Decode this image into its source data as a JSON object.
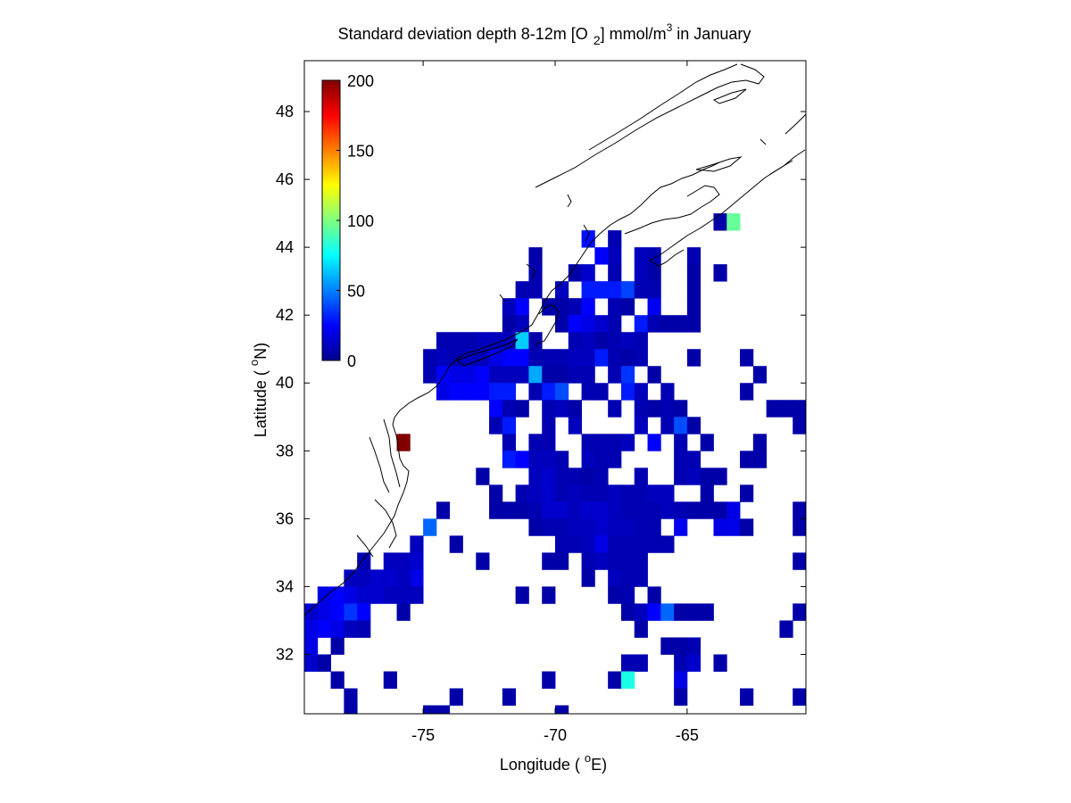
{
  "colors": {
    "background": "#ffffff",
    "coast": "#000000",
    "colormap": "jet"
  },
  "chart_data": {
    "type": "heatmap",
    "title_main": "Standard deviation depth 8-12m [O",
    "title_sub": "2",
    "title_mid": "] mmol/m",
    "title_sup": "3",
    "title_end": " in January",
    "xlabel_pre": "Longitude ( ",
    "xlabel_sup": "o",
    "xlabel_post": "E)",
    "ylabel_pre": "Latitude ( ",
    "ylabel_sup": "o",
    "ylabel_post": "N)",
    "xlim": [
      -79.5,
      -60.5
    ],
    "ylim": [
      30.25,
      49.5
    ],
    "xticks": [
      "-75",
      "-70",
      "-65"
    ],
    "yticks": [
      "32",
      "34",
      "36",
      "38",
      "40",
      "42",
      "44",
      "46",
      "48"
    ],
    "cell_size_deg": 0.5,
    "colorbar": {
      "range": [
        0,
        200
      ],
      "ticks": [
        "0",
        "50",
        "100",
        "150",
        "200"
      ],
      "placement": "top-left inside"
    },
    "grid": false,
    "cells": [
      [
        -63.75,
        44.75,
        8
      ],
      [
        -63.25,
        44.75,
        95
      ],
      [
        -68.75,
        44.25,
        28
      ],
      [
        -67.75,
        44.25,
        10
      ],
      [
        -70.75,
        43.75,
        8
      ],
      [
        -68.25,
        43.75,
        25
      ],
      [
        -67.75,
        43.75,
        12
      ],
      [
        -66.75,
        43.75,
        12
      ],
      [
        -66.25,
        43.75,
        10
      ],
      [
        -64.75,
        43.75,
        10
      ],
      [
        -70.75,
        43.25,
        10
      ],
      [
        -69.25,
        43.25,
        8
      ],
      [
        -68.75,
        43.25,
        15
      ],
      [
        -67.75,
        43.25,
        10
      ],
      [
        -66.75,
        43.25,
        12
      ],
      [
        -66.25,
        43.25,
        8
      ],
      [
        -64.75,
        43.25,
        8
      ],
      [
        -63.75,
        43.25,
        8
      ],
      [
        -71.25,
        42.75,
        10
      ],
      [
        -70.75,
        42.75,
        10
      ],
      [
        -69.75,
        42.75,
        12
      ],
      [
        -68.75,
        42.75,
        30
      ],
      [
        -68.25,
        42.75,
        30
      ],
      [
        -67.75,
        42.75,
        30
      ],
      [
        -67.25,
        42.75,
        38
      ],
      [
        -66.75,
        42.75,
        10
      ],
      [
        -66.25,
        42.75,
        10
      ],
      [
        -64.75,
        42.75,
        8
      ],
      [
        -71.75,
        42.25,
        12
      ],
      [
        -71.25,
        42.25,
        25
      ],
      [
        -70.25,
        42.25,
        8
      ],
      [
        -69.75,
        42.25,
        8
      ],
      [
        -69.25,
        42.25,
        10
      ],
      [
        -68.75,
        42.25,
        25
      ],
      [
        -67.75,
        42.25,
        10
      ],
      [
        -67.25,
        42.25,
        8
      ],
      [
        -66.25,
        42.25,
        22
      ],
      [
        -64.75,
        42.25,
        8
      ],
      [
        -71.75,
        41.75,
        8
      ],
      [
        -71.25,
        41.75,
        12
      ],
      [
        -69.75,
        41.75,
        8
      ],
      [
        -69.25,
        41.75,
        25
      ],
      [
        -68.75,
        41.75,
        20
      ],
      [
        -68.25,
        41.75,
        15
      ],
      [
        -67.75,
        41.75,
        10
      ],
      [
        -66.75,
        41.75,
        30
      ],
      [
        -66.25,
        41.75,
        10
      ],
      [
        -65.75,
        41.75,
        8
      ],
      [
        -65.25,
        41.75,
        8
      ],
      [
        -64.75,
        41.75,
        8
      ],
      [
        -74.25,
        41.25,
        10
      ],
      [
        -73.75,
        41.25,
        10
      ],
      [
        -73.25,
        41.25,
        10
      ],
      [
        -72.75,
        41.25,
        12
      ],
      [
        -72.25,
        41.25,
        12
      ],
      [
        -71.75,
        41.25,
        12
      ],
      [
        -71.25,
        41.25,
        65
      ],
      [
        -70.75,
        41.25,
        8
      ],
      [
        -69.25,
        41.25,
        10
      ],
      [
        -68.75,
        41.25,
        12
      ],
      [
        -68.25,
        41.25,
        8
      ],
      [
        -67.75,
        41.25,
        10
      ],
      [
        -67.25,
        41.25,
        12
      ],
      [
        -66.75,
        41.25,
        10
      ],
      [
        -74.75,
        40.75,
        10
      ],
      [
        -74.25,
        40.75,
        12
      ],
      [
        -73.75,
        40.75,
        10
      ],
      [
        -73.25,
        40.75,
        12
      ],
      [
        -72.75,
        40.75,
        12
      ],
      [
        -72.25,
        40.75,
        20
      ],
      [
        -71.75,
        40.75,
        25
      ],
      [
        -71.25,
        40.75,
        25
      ],
      [
        -70.75,
        40.75,
        10
      ],
      [
        -70.25,
        40.75,
        10
      ],
      [
        -69.75,
        40.75,
        10
      ],
      [
        -69.25,
        40.75,
        12
      ],
      [
        -68.75,
        40.75,
        12
      ],
      [
        -68.25,
        40.75,
        30
      ],
      [
        -67.75,
        40.75,
        10
      ],
      [
        -67.25,
        40.75,
        8
      ],
      [
        -66.75,
        40.75,
        10
      ],
      [
        -64.75,
        40.75,
        8
      ],
      [
        -62.75,
        40.75,
        8
      ],
      [
        -74.75,
        40.25,
        10
      ],
      [
        -74.25,
        40.25,
        25
      ],
      [
        -73.75,
        40.25,
        20
      ],
      [
        -73.25,
        40.25,
        20
      ],
      [
        -72.75,
        40.25,
        25
      ],
      [
        -72.25,
        40.25,
        12
      ],
      [
        -71.75,
        40.25,
        12
      ],
      [
        -71.25,
        40.25,
        12
      ],
      [
        -70.75,
        40.25,
        58
      ],
      [
        -70.25,
        40.25,
        8
      ],
      [
        -69.75,
        40.25,
        8
      ],
      [
        -69.25,
        40.25,
        10
      ],
      [
        -68.75,
        40.25,
        10
      ],
      [
        -67.75,
        40.25,
        10
      ],
      [
        -67.25,
        40.25,
        35
      ],
      [
        -66.25,
        40.25,
        8
      ],
      [
        -62.25,
        40.25,
        8
      ],
      [
        -74.25,
        39.75,
        20
      ],
      [
        -73.75,
        39.75,
        25
      ],
      [
        -73.25,
        39.75,
        25
      ],
      [
        -72.75,
        39.75,
        25
      ],
      [
        -72.25,
        39.75,
        30
      ],
      [
        -71.75,
        39.75,
        30
      ],
      [
        -70.75,
        39.75,
        10
      ],
      [
        -70.25,
        39.75,
        30
      ],
      [
        -69.75,
        39.75,
        40
      ],
      [
        -68.75,
        39.75,
        10
      ],
      [
        -68.25,
        39.75,
        10
      ],
      [
        -67.25,
        39.75,
        30
      ],
      [
        -66.75,
        39.75,
        12
      ],
      [
        -65.75,
        39.75,
        10
      ],
      [
        -62.75,
        39.75,
        8
      ],
      [
        -72.25,
        39.25,
        25
      ],
      [
        -71.75,
        39.25,
        10
      ],
      [
        -71.25,
        39.25,
        8
      ],
      [
        -70.25,
        39.25,
        10
      ],
      [
        -69.75,
        39.25,
        12
      ],
      [
        -69.25,
        39.25,
        8
      ],
      [
        -67.75,
        39.25,
        10
      ],
      [
        -66.75,
        39.25,
        10
      ],
      [
        -66.25,
        39.25,
        8
      ],
      [
        -65.75,
        39.25,
        10
      ],
      [
        -65.25,
        39.25,
        8
      ],
      [
        -61.75,
        39.25,
        8
      ],
      [
        -61.25,
        39.25,
        8
      ],
      [
        -60.75,
        39.25,
        8
      ],
      [
        -72.25,
        38.75,
        10
      ],
      [
        -71.75,
        38.75,
        30
      ],
      [
        -70.25,
        38.75,
        10
      ],
      [
        -69.25,
        38.75,
        12
      ],
      [
        -66.75,
        38.75,
        12
      ],
      [
        -65.75,
        38.75,
        10
      ],
      [
        -65.25,
        38.75,
        40
      ],
      [
        -64.75,
        38.75,
        8
      ],
      [
        -60.75,
        38.75,
        8
      ],
      [
        -75.75,
        38.25,
        200
      ],
      [
        -71.75,
        38.25,
        10
      ],
      [
        -70.75,
        38.25,
        10
      ],
      [
        -70.25,
        38.25,
        10
      ],
      [
        -68.75,
        38.25,
        10
      ],
      [
        -68.25,
        38.25,
        10
      ],
      [
        -67.75,
        38.25,
        10
      ],
      [
        -67.25,
        38.25,
        12
      ],
      [
        -66.25,
        38.25,
        25
      ],
      [
        -65.25,
        38.25,
        10
      ],
      [
        -64.25,
        38.25,
        8
      ],
      [
        -62.25,
        38.25,
        8
      ],
      [
        -71.75,
        37.75,
        30
      ],
      [
        -71.25,
        37.75,
        25
      ],
      [
        -70.75,
        37.75,
        12
      ],
      [
        -70.25,
        37.75,
        12
      ],
      [
        -69.75,
        37.75,
        10
      ],
      [
        -68.75,
        37.75,
        12
      ],
      [
        -68.25,
        37.75,
        10
      ],
      [
        -67.75,
        37.75,
        10
      ],
      [
        -65.25,
        37.75,
        10
      ],
      [
        -64.75,
        37.75,
        10
      ],
      [
        -62.75,
        37.75,
        8
      ],
      [
        -62.25,
        37.75,
        8
      ],
      [
        -72.75,
        37.25,
        8
      ],
      [
        -70.75,
        37.25,
        12
      ],
      [
        -70.25,
        37.25,
        15
      ],
      [
        -69.75,
        37.25,
        10
      ],
      [
        -69.25,
        37.25,
        10
      ],
      [
        -68.75,
        37.25,
        8
      ],
      [
        -68.25,
        37.25,
        10
      ],
      [
        -66.75,
        37.25,
        10
      ],
      [
        -65.25,
        37.25,
        10
      ],
      [
        -64.75,
        37.25,
        12
      ],
      [
        -64.25,
        37.25,
        8
      ],
      [
        -63.75,
        37.25,
        8
      ],
      [
        -72.25,
        36.75,
        8
      ],
      [
        -71.25,
        36.75,
        10
      ],
      [
        -70.75,
        36.75,
        12
      ],
      [
        -70.25,
        36.75,
        15
      ],
      [
        -69.75,
        36.75,
        10
      ],
      [
        -69.25,
        36.75,
        12
      ],
      [
        -68.75,
        36.75,
        10
      ],
      [
        -68.25,
        36.75,
        10
      ],
      [
        -67.75,
        36.75,
        12
      ],
      [
        -67.25,
        36.75,
        10
      ],
      [
        -66.75,
        36.75,
        10
      ],
      [
        -66.25,
        36.75,
        12
      ],
      [
        -65.75,
        36.75,
        12
      ],
      [
        -64.25,
        36.75,
        8
      ],
      [
        -62.75,
        36.75,
        8
      ],
      [
        -74.25,
        36.25,
        8
      ],
      [
        -72.25,
        36.25,
        8
      ],
      [
        -71.75,
        36.25,
        8
      ],
      [
        -71.25,
        36.25,
        8
      ],
      [
        -70.75,
        36.25,
        10
      ],
      [
        -70.25,
        36.25,
        15
      ],
      [
        -69.75,
        36.25,
        15
      ],
      [
        -69.25,
        36.25,
        12
      ],
      [
        -68.75,
        36.25,
        15
      ],
      [
        -68.25,
        36.25,
        15
      ],
      [
        -67.75,
        36.25,
        12
      ],
      [
        -67.25,
        36.25,
        10
      ],
      [
        -66.75,
        36.25,
        10
      ],
      [
        -66.25,
        36.25,
        10
      ],
      [
        -65.75,
        36.25,
        12
      ],
      [
        -65.25,
        36.25,
        10
      ],
      [
        -64.75,
        36.25,
        8
      ],
      [
        -64.25,
        36.25,
        8
      ],
      [
        -63.75,
        36.25,
        8
      ],
      [
        -63.25,
        36.25,
        20
      ],
      [
        -60.75,
        36.25,
        8
      ],
      [
        -74.75,
        35.75,
        45
      ],
      [
        -70.75,
        35.75,
        8
      ],
      [
        -70.25,
        35.75,
        10
      ],
      [
        -69.75,
        35.75,
        10
      ],
      [
        -69.25,
        35.75,
        12
      ],
      [
        -68.75,
        35.75,
        12
      ],
      [
        -68.25,
        35.75,
        15
      ],
      [
        -67.75,
        35.75,
        12
      ],
      [
        -67.25,
        35.75,
        12
      ],
      [
        -66.75,
        35.75,
        10
      ],
      [
        -66.25,
        35.75,
        10
      ],
      [
        -65.25,
        35.75,
        22
      ],
      [
        -63.75,
        35.75,
        20
      ],
      [
        -63.25,
        35.75,
        20
      ],
      [
        -62.75,
        35.75,
        8
      ],
      [
        -60.75,
        35.75,
        8
      ],
      [
        -75.25,
        35.25,
        12
      ],
      [
        -73.75,
        35.25,
        8
      ],
      [
        -69.75,
        35.25,
        10
      ],
      [
        -69.25,
        35.25,
        10
      ],
      [
        -68.75,
        35.25,
        12
      ],
      [
        -68.25,
        35.25,
        20
      ],
      [
        -67.75,
        35.25,
        10
      ],
      [
        -67.25,
        35.25,
        10
      ],
      [
        -66.75,
        35.25,
        10
      ],
      [
        -66.25,
        35.25,
        10
      ],
      [
        -65.75,
        35.25,
        10
      ],
      [
        -75.75,
        34.75,
        12
      ],
      [
        -75.25,
        34.75,
        15
      ],
      [
        -69.75,
        34.75,
        8
      ],
      [
        -68.75,
        34.75,
        10
      ],
      [
        -68.25,
        34.75,
        12
      ],
      [
        -67.25,
        34.75,
        10
      ],
      [
        -66.75,
        34.75,
        10
      ],
      [
        -77.25,
        34.75,
        10
      ],
      [
        -76.25,
        34.75,
        12
      ],
      [
        -75.75,
        34.25,
        12
      ],
      [
        -75.25,
        34.25,
        20
      ],
      [
        -72.75,
        34.75,
        8
      ],
      [
        -70.25,
        34.75,
        8
      ],
      [
        -67.75,
        34.75,
        10
      ],
      [
        -77.75,
        34.25,
        12
      ],
      [
        -77.25,
        34.25,
        12
      ],
      [
        -76.75,
        34.25,
        15
      ],
      [
        -76.25,
        34.25,
        15
      ],
      [
        -68.75,
        34.25,
        8
      ],
      [
        -67.75,
        34.25,
        12
      ],
      [
        -67.25,
        34.25,
        10
      ],
      [
        -66.75,
        34.25,
        10
      ],
      [
        -60.75,
        34.75,
        8
      ],
      [
        -78.75,
        33.75,
        20
      ],
      [
        -78.25,
        33.75,
        25
      ],
      [
        -77.75,
        33.75,
        20
      ],
      [
        -77.25,
        33.75,
        15
      ],
      [
        -76.75,
        33.75,
        15
      ],
      [
        -76.25,
        33.75,
        12
      ],
      [
        -75.75,
        33.75,
        12
      ],
      [
        -75.25,
        33.75,
        12
      ],
      [
        -71.25,
        33.75,
        8
      ],
      [
        -70.25,
        33.75,
        8
      ],
      [
        -67.75,
        33.75,
        8
      ],
      [
        -67.25,
        33.75,
        10
      ],
      [
        -66.25,
        33.75,
        8
      ],
      [
        -79.25,
        33.25,
        15
      ],
      [
        -78.75,
        33.25,
        20
      ],
      [
        -78.25,
        33.25,
        25
      ],
      [
        -77.75,
        33.25,
        35
      ],
      [
        -77.25,
        33.25,
        25
      ],
      [
        -75.75,
        33.25,
        8
      ],
      [
        -67.25,
        33.25,
        8
      ],
      [
        -66.75,
        33.25,
        12
      ],
      [
        -66.25,
        33.25,
        25
      ],
      [
        -65.75,
        33.25,
        45
      ],
      [
        -65.25,
        33.25,
        8
      ],
      [
        -64.75,
        33.25,
        8
      ],
      [
        -64.25,
        33.25,
        8
      ],
      [
        -60.75,
        33.25,
        8
      ],
      [
        -79.25,
        32.75,
        20
      ],
      [
        -78.75,
        32.75,
        25
      ],
      [
        -78.25,
        32.75,
        20
      ],
      [
        -77.75,
        32.75,
        12
      ],
      [
        -77.25,
        32.75,
        10
      ],
      [
        -66.75,
        32.75,
        8
      ],
      [
        -61.25,
        32.75,
        8
      ],
      [
        -79.25,
        32.25,
        20
      ],
      [
        -78.25,
        32.25,
        8
      ],
      [
        -65.75,
        32.25,
        8
      ],
      [
        -65.25,
        32.25,
        8
      ],
      [
        -64.75,
        32.25,
        10
      ],
      [
        -79.25,
        31.75,
        15
      ],
      [
        -78.75,
        31.75,
        8
      ],
      [
        -67.25,
        31.75,
        10
      ],
      [
        -66.75,
        31.75,
        10
      ],
      [
        -65.25,
        31.75,
        10
      ],
      [
        -64.75,
        31.75,
        15
      ],
      [
        -63.75,
        31.75,
        8
      ],
      [
        -78.25,
        31.25,
        8
      ],
      [
        -76.25,
        31.25,
        8
      ],
      [
        -70.25,
        31.25,
        8
      ],
      [
        -67.75,
        31.25,
        8
      ],
      [
        -67.25,
        31.25,
        80
      ],
      [
        -65.25,
        31.25,
        20
      ],
      [
        -77.75,
        30.75,
        8
      ],
      [
        -73.75,
        30.75,
        8
      ],
      [
        -71.75,
        30.75,
        8
      ],
      [
        -65.25,
        30.75,
        8
      ],
      [
        -62.75,
        30.75,
        8
      ],
      [
        -60.75,
        30.75,
        8
      ],
      [
        -77.75,
        30.25,
        8
      ],
      [
        -74.75,
        30.25,
        8
      ],
      [
        -74.25,
        30.25,
        8
      ],
      [
        -69.75,
        30.25,
        8
      ]
    ]
  }
}
